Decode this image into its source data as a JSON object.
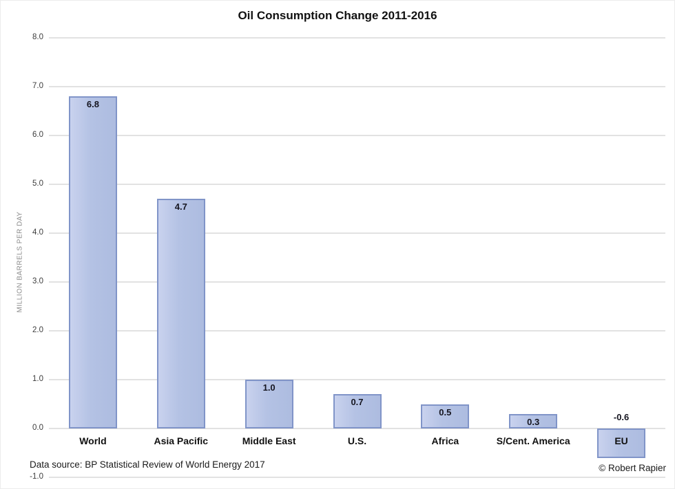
{
  "title": "Oil Consumption Change 2011-2016",
  "footer": {
    "source": "Data source: BP Statistical Review of World Energy 2017",
    "credit": "© Robert Rapier"
  },
  "chart_data": {
    "type": "bar",
    "title": "Oil Consumption Change 2011-2016",
    "categories": [
      "World",
      "Asia Pacific",
      "Middle East",
      "U.S.",
      "Africa",
      "S/Cent. America",
      "EU"
    ],
    "values": [
      6.8,
      4.7,
      1.0,
      0.7,
      0.5,
      0.3,
      -0.6
    ],
    "value_labels": [
      "6.8",
      "4.7",
      "1.0",
      "0.7",
      "0.5",
      "0.3",
      "-0.6"
    ],
    "xlabel": "",
    "ylabel": "MILLION BARRELS PER DAY",
    "ylim": [
      -1.0,
      8.0
    ],
    "yticks": [
      "8.0",
      "7.0",
      "6.0",
      "5.0",
      "4.0",
      "3.0",
      "2.0",
      "1.0",
      "0.0",
      "-1.0"
    ],
    "grid": true,
    "legend": false,
    "colors": {
      "bar_fill": "#b4c2e4",
      "bar_border": "#8094c8",
      "gridline": "#e2e2e2",
      "tick_text": "#3c3c3c",
      "axis_title_text": "#8a8a8a",
      "label_text": "#15151f"
    }
  }
}
